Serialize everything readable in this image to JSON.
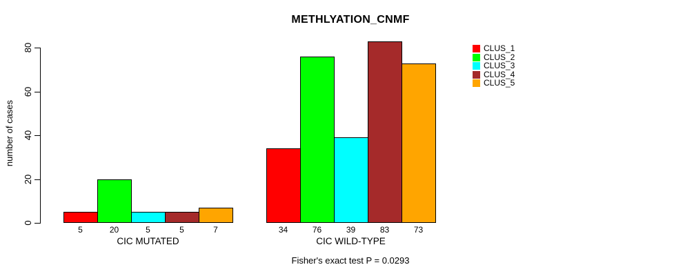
{
  "chart_data": {
    "type": "bar",
    "title": "METHLYATION_CNMF",
    "ylabel": "number of cases",
    "xlabel": "",
    "ylim": [
      0,
      80
    ],
    "yticks": [
      0,
      20,
      40,
      60,
      80
    ],
    "categories": [
      "CIC MUTATED",
      "CIC WILD-TYPE"
    ],
    "series": [
      {
        "name": "CLUS_1",
        "color": "#FF0000",
        "values": [
          5,
          34
        ]
      },
      {
        "name": "CLUS_2",
        "color": "#00FF00",
        "values": [
          20,
          76
        ]
      },
      {
        "name": "CLUS_3",
        "color": "#00FFFF",
        "values": [
          5,
          39
        ]
      },
      {
        "name": "CLUS_4",
        "color": "#A52A2A",
        "values": [
          5,
          83
        ]
      },
      {
        "name": "CLUS_5",
        "color": "#FFA500",
        "values": [
          7,
          73
        ]
      }
    ],
    "bar_value_labels": true,
    "legend_position": "right",
    "grid": false,
    "annotation": "Fisher's exact test P = 0.0293",
    "axis_color": "#000000",
    "bar_border_color": "#000000",
    "background": "#FFFFFF"
  }
}
